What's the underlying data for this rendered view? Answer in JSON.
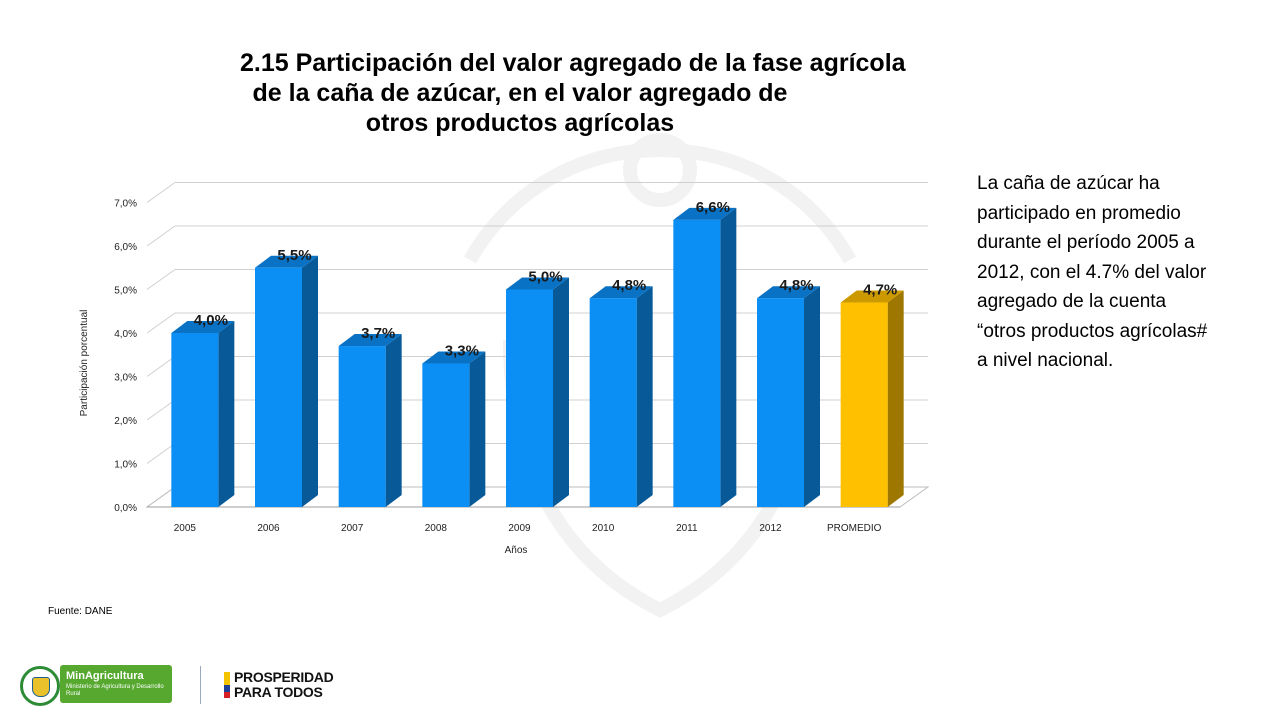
{
  "title": {
    "line1": "2.15 Participación del valor agregado de la fase agrícola",
    "line2": "de la caña de azúcar, en el valor agregado de",
    "line3": "otros productos agrícolas"
  },
  "chart_data": {
    "type": "bar",
    "categories": [
      "2005",
      "2006",
      "2007",
      "2008",
      "2009",
      "2010",
      "2011",
      "2012",
      "PROMEDIO"
    ],
    "values": [
      4.0,
      5.5,
      3.7,
      3.3,
      5.0,
      4.8,
      6.6,
      4.8,
      4.7
    ],
    "data_labels": [
      "4,0%",
      "5,5%",
      "3,7%",
      "3,3%",
      "5,0%",
      "4,8%",
      "6,6%",
      "4,8%",
      "4,7%"
    ],
    "xlabel": "Años",
    "ylabel": "Participación porcentual",
    "ylim": [
      0,
      7
    ],
    "yticks": [
      "0,0%",
      "1,0%",
      "2,0%",
      "3,0%",
      "4,0%",
      "5,0%",
      "6,0%",
      "7,0%"
    ],
    "grid": true,
    "legend": "none",
    "colors": {
      "bar": "#0b8ff5",
      "highlight": "#ffc000"
    }
  },
  "side_text": {
    "line1": "La caña de azúcar ha",
    "line2": "participado en promedio",
    "line3": "durante el período 2005 a",
    "line4": "2012, con el  4.7% del valor",
    "line5": "agregado de la cuenta",
    "line6": "“otros productos agrícolas#",
    "line7": "a nivel nacional."
  },
  "source": "Fuente: DANE",
  "footer": {
    "ministry_name": "MinAgricultura",
    "ministry_sub": "Ministerio de Agricultura y Desarrollo Rural",
    "prosperidad_line1": "PROSPERIDAD",
    "prosperidad_line2": "PARA TODOS"
  }
}
